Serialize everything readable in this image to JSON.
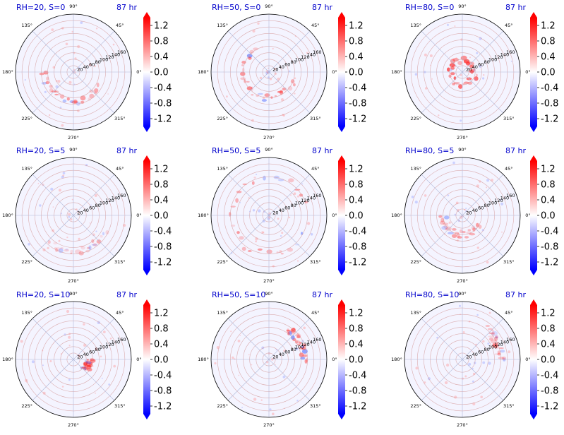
{
  "figure": {
    "title_rows": [
      "RH=20",
      "RH=50",
      "RH=80"
    ]
  },
  "colorbar": {
    "ticks": [
      "1.2",
      "0.8",
      "0.4",
      "0.0",
      "-0.4",
      "-0.8",
      "-1.2"
    ],
    "tick_values": [
      1.2,
      0.8,
      0.4,
      0.0,
      -0.4,
      -0.8,
      -1.2
    ],
    "vmin": -1.4,
    "vmax": 1.4,
    "cmap": "bwr",
    "colors": {
      "low": "#0000ff",
      "mid": "#ffffff",
      "high": "#ff0000"
    }
  },
  "polar": {
    "angle_ticks": [
      "0°",
      "45°",
      "90°",
      "135°",
      "180°",
      "225°",
      "270°",
      "315°"
    ],
    "angle_values": [
      0,
      45,
      90,
      135,
      180,
      225,
      270,
      315
    ],
    "radial_ticks": [
      "20",
      "40",
      "60",
      "80",
      "100",
      "120",
      "140",
      "160"
    ],
    "radial_values": [
      20,
      40,
      60,
      80,
      100,
      120,
      140,
      160
    ],
    "rmax": 180,
    "grid": true
  },
  "chart_data": [
    {
      "type": "heatmap",
      "projection": "polar",
      "title_left": "RH=20, S=0",
      "title_right": "87 hr",
      "rh": 20,
      "s": 0,
      "feature_ring": 90,
      "feature_arc": [
        180,
        330
      ],
      "intensity": 0.6
    },
    {
      "type": "heatmap",
      "projection": "polar",
      "title_left": "RH=50, S=0",
      "title_right": "87 hr",
      "rh": 50,
      "s": 0,
      "feature_ring": 80,
      "feature_arc": [
        120,
        340
      ],
      "intensity": 0.7
    },
    {
      "type": "heatmap",
      "projection": "polar",
      "title_left": "RH=80, S=0",
      "title_right": "87 hr",
      "rh": 80,
      "s": 0,
      "feature_ring": 40,
      "feature_arc": [
        0,
        360
      ],
      "intensity": 1.0
    },
    {
      "type": "heatmap",
      "projection": "polar",
      "title_left": "RH=20, S=5",
      "title_right": "87 hr",
      "rh": 20,
      "s": 5,
      "feature_ring": 110,
      "feature_arc": [
        230,
        330
      ],
      "intensity": 0.4
    },
    {
      "type": "heatmap",
      "projection": "polar",
      "title_left": "RH=50, S=5",
      "title_right": "87 hr",
      "rh": 50,
      "s": 5,
      "feature_ring": 120,
      "feature_arc": [
        20,
        330
      ],
      "intensity": 0.6
    },
    {
      "type": "heatmap",
      "projection": "polar",
      "title_left": "RH=80, S=5",
      "title_right": "87 hr",
      "rh": 80,
      "s": 5,
      "feature_ring": 60,
      "feature_arc": [
        180,
        330
      ],
      "intensity": 0.6
    },
    {
      "type": "heatmap",
      "projection": "polar",
      "title_left": "RH=20, S=10",
      "title_right": "87 hr",
      "rh": 20,
      "s": 10,
      "feature_ring": 50,
      "feature_arc": [
        320,
        360
      ],
      "intensity": 0.8
    },
    {
      "type": "heatmap",
      "projection": "polar",
      "title_left": "RH=50, S=10",
      "title_right": "87 hr",
      "rh": 50,
      "s": 10,
      "feature_ring": 110,
      "feature_arc": [
        0,
        60
      ],
      "intensity": 0.8
    },
    {
      "type": "heatmap",
      "projection": "polar",
      "title_left": "RH=80, S=10",
      "title_right": "87 hr",
      "rh": 80,
      "s": 10,
      "feature_ring": 120,
      "feature_arc": [
        0,
        50
      ],
      "intensity": 0.5
    }
  ]
}
